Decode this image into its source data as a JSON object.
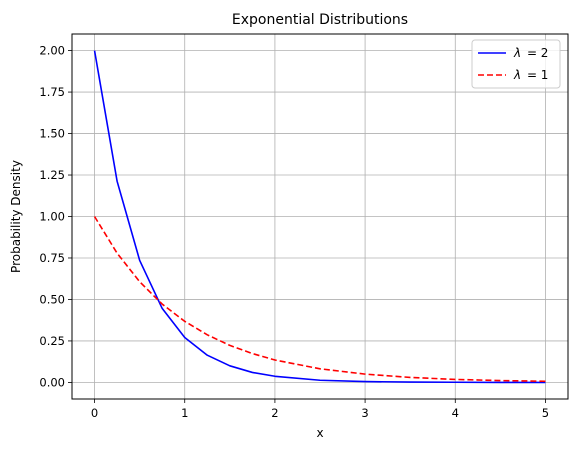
{
  "chart_data": {
    "type": "line",
    "title": "Exponential Distributions",
    "xlabel": "x",
    "ylabel": "Probability Density",
    "xlim": [
      -0.25,
      5.25
    ],
    "ylim": [
      -0.1,
      2.1
    ],
    "x_ticks": [
      0,
      1,
      2,
      3,
      4,
      5
    ],
    "x_tick_labels": [
      "0",
      "1",
      "2",
      "3",
      "4",
      "5"
    ],
    "y_ticks": [
      0,
      0.25,
      0.5,
      0.75,
      1.0,
      1.25,
      1.5,
      1.75,
      2.0
    ],
    "y_tick_labels": [
      "0.00",
      "0.25",
      "0.50",
      "0.75",
      "1.00",
      "1.25",
      "1.50",
      "1.75",
      "2.00"
    ],
    "grid": true,
    "legend_position": "top-right",
    "series": [
      {
        "name": "λ = 2",
        "legend_symbol": "λ",
        "legend_value": "= 2",
        "color": "#0000ff",
        "style": "solid",
        "x": [
          0,
          0.25,
          0.5,
          0.75,
          1.0,
          1.25,
          1.5,
          1.75,
          2.0,
          2.5,
          3.0,
          3.5,
          4.0,
          4.5,
          5.0
        ],
        "y": [
          2.0,
          1.213,
          0.736,
          0.446,
          0.271,
          0.164,
          0.1,
          0.06,
          0.037,
          0.013,
          0.005,
          0.002,
          0.001,
          0.0,
          0.0
        ]
      },
      {
        "name": "λ = 1",
        "legend_symbol": "λ",
        "legend_value": "= 1",
        "color": "#ff0000",
        "style": "dashed",
        "x": [
          0,
          0.25,
          0.5,
          0.75,
          1.0,
          1.25,
          1.5,
          1.75,
          2.0,
          2.5,
          3.0,
          3.5,
          4.0,
          4.5,
          5.0
        ],
        "y": [
          1.0,
          0.779,
          0.607,
          0.472,
          0.368,
          0.287,
          0.223,
          0.174,
          0.135,
          0.082,
          0.05,
          0.03,
          0.018,
          0.011,
          0.007
        ]
      }
    ]
  }
}
